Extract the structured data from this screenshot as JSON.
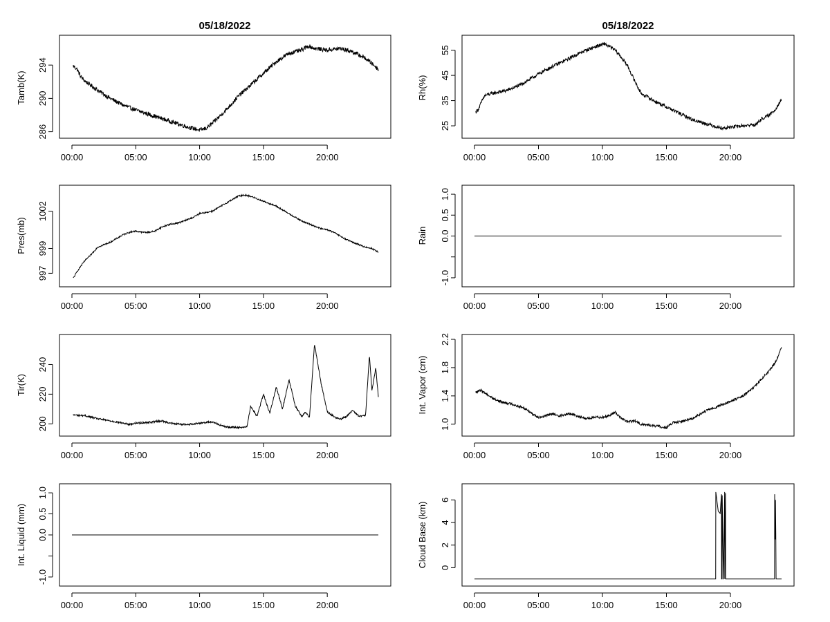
{
  "page_title": "05/18/2022",
  "chart_data": [
    {
      "id": "tamb",
      "type": "line",
      "title": "05/18/2022",
      "ylabel": "Tamb(K)",
      "xlim": [
        0,
        24
      ],
      "ylim": [
        285.8,
        297
      ],
      "x_ticks": [
        0,
        5,
        10,
        15,
        20
      ],
      "x_tick_labels": [
        "00:00",
        "05:00",
        "10:00",
        "15:00",
        "20:00"
      ],
      "y_ticks": [
        286,
        290,
        294
      ],
      "y_tick_labels": [
        "286",
        "290",
        "294"
      ],
      "noise": 0.25,
      "series": [
        {
          "x": [
            0.1,
            0.4,
            0.7,
            1,
            2,
            3,
            4,
            5,
            6,
            7,
            8,
            9,
            10,
            10.5,
            11,
            12,
            13,
            14,
            15,
            16,
            17,
            18,
            18.5,
            19,
            20,
            21,
            22,
            23,
            23.5,
            24
          ],
          "y": [
            293.9,
            293.5,
            292.6,
            292.1,
            291.0,
            290.0,
            289.2,
            288.6,
            288.1,
            287.6,
            287.1,
            286.6,
            286.2,
            286.4,
            287.0,
            288.5,
            290.2,
            291.6,
            293.0,
            294.4,
            295.4,
            295.8,
            296.3,
            296.0,
            295.8,
            296.0,
            295.6,
            294.8,
            294.2,
            293.5
          ]
        }
      ]
    },
    {
      "id": "rh",
      "type": "line",
      "title": "05/18/2022",
      "ylabel": "Rh(%)",
      "xlim": [
        0,
        24
      ],
      "ylim": [
        22,
        59
      ],
      "x_ticks": [
        0,
        5,
        10,
        15,
        20
      ],
      "x_tick_labels": [
        "00:00",
        "05:00",
        "10:00",
        "15:00",
        "20:00"
      ],
      "y_ticks": [
        25,
        35,
        45,
        55
      ],
      "y_tick_labels": [
        "25",
        "35",
        "45",
        "55"
      ],
      "noise": 0.7,
      "series": [
        {
          "x": [
            0.1,
            0.3,
            0.6,
            0.8,
            1.5,
            2.5,
            3.5,
            4.5,
            5.5,
            6.5,
            7.5,
            8.5,
            9.5,
            10.2,
            11,
            11.5,
            12,
            12.5,
            13,
            14,
            15,
            16,
            17,
            18,
            19,
            19.5,
            20,
            21,
            22,
            22.5,
            23,
            23.5,
            24
          ],
          "y": [
            30.5,
            31.5,
            35.0,
            37.0,
            38.0,
            39.0,
            41.0,
            44.0,
            47.0,
            49.5,
            52.0,
            54.5,
            56.5,
            57.5,
            55.0,
            52.0,
            48.5,
            43.0,
            38.0,
            35.0,
            32.5,
            30.0,
            27.5,
            26.0,
            24.5,
            24.0,
            24.5,
            25.0,
            25.5,
            28.0,
            29.0,
            31.5,
            35.5
          ]
        }
      ]
    },
    {
      "id": "pres",
      "type": "line",
      "title": "",
      "ylabel": "Pres(mb)",
      "xlim": [
        0,
        24
      ],
      "ylim": [
        996.3,
        1003.7
      ],
      "x_ticks": [
        0,
        5,
        10,
        15,
        20
      ],
      "x_tick_labels": [
        "00:00",
        "05:00",
        "10:00",
        "15:00",
        "20:00"
      ],
      "y_ticks": [
        997,
        999,
        1002
      ],
      "y_tick_labels": [
        "997",
        "999",
        "1002"
      ],
      "noise": 0.06,
      "series": [
        {
          "x": [
            0.1,
            0.5,
            1,
            1.5,
            2,
            2.5,
            3,
            3.5,
            4,
            4.5,
            5,
            5.5,
            6,
            6.5,
            7,
            7.5,
            8,
            8.5,
            9,
            9.5,
            10,
            10.5,
            11,
            11.5,
            12,
            12.5,
            13,
            13.5,
            14,
            14.5,
            15,
            15.5,
            16,
            16.5,
            17,
            17.5,
            18,
            18.5,
            19,
            19.5,
            20,
            20.5,
            21,
            21.5,
            22,
            22.5,
            23,
            23.5,
            24
          ],
          "y": [
            996.6,
            997.3,
            998.0,
            998.5,
            999.1,
            999.3,
            999.5,
            999.8,
            1000.1,
            1000.3,
            1000.4,
            1000.3,
            1000.3,
            1000.4,
            1000.7,
            1000.9,
            1001.0,
            1001.1,
            1001.3,
            1001.5,
            1001.8,
            1001.9,
            1002.0,
            1002.3,
            1002.6,
            1002.9,
            1003.2,
            1003.3,
            1003.2,
            1003.0,
            1002.8,
            1002.6,
            1002.4,
            1002.1,
            1001.8,
            1001.5,
            1001.2,
            1001.0,
            1000.8,
            1000.6,
            1000.5,
            1000.3,
            1000.0,
            999.7,
            999.5,
            999.3,
            999.1,
            999.0,
            998.7
          ]
        }
      ]
    },
    {
      "id": "rain",
      "type": "line",
      "title": "",
      "ylabel": "Rain",
      "xlim": [
        0,
        24
      ],
      "ylim": [
        -1.1,
        1.1
      ],
      "x_ticks": [
        0,
        5,
        10,
        15,
        20
      ],
      "x_tick_labels": [
        "00:00",
        "05:00",
        "10:00",
        "15:00",
        "20:00"
      ],
      "y_ticks": [
        -1.0,
        -0.5,
        0.0,
        0.5,
        1.0
      ],
      "y_tick_labels": [
        "-1.0",
        "",
        "0.0",
        "0.5",
        "1.0"
      ],
      "noise": 0,
      "series": [
        {
          "x": [
            0,
            24
          ],
          "y": [
            0,
            0
          ]
        }
      ]
    },
    {
      "id": "tir",
      "type": "line",
      "title": "",
      "ylabel": "Tir(K)",
      "xlim": [
        0,
        24
      ],
      "ylim": [
        195,
        257
      ],
      "x_ticks": [
        0,
        5,
        10,
        15,
        20
      ],
      "x_tick_labels": [
        "00:00",
        "05:00",
        "10:00",
        "15:00",
        "20:00"
      ],
      "y_ticks": [
        200,
        220,
        240
      ],
      "y_tick_labels": [
        "200",
        "220",
        "240"
      ],
      "noise": 0.6,
      "series": [
        {
          "x": [
            0.1,
            1,
            2,
            3,
            4,
            4.5,
            5,
            6,
            7,
            8,
            9,
            10,
            11,
            11.5,
            12,
            13,
            13.7,
            14,
            14.5,
            15,
            15.5,
            16,
            16.5,
            17,
            17.5,
            18,
            18.3,
            18.6,
            19,
            19.5,
            20,
            20.5,
            21,
            21.5,
            22,
            22.5,
            23,
            23.3,
            23.5,
            23.8,
            24
          ],
          "y": [
            206,
            205.5,
            203.5,
            202,
            200.5,
            199.5,
            200.5,
            201,
            202,
            200,
            199.5,
            200.5,
            201.5,
            199.5,
            198,
            197.5,
            198,
            212,
            205,
            220,
            207,
            225,
            210,
            230,
            212,
            205,
            208,
            204,
            254,
            228,
            208,
            205,
            203,
            205,
            209,
            205,
            206,
            246,
            222,
            238,
            218
          ]
        }
      ]
    },
    {
      "id": "vapor",
      "type": "line",
      "title": "",
      "ylabel": "Int. Vapor (cm)",
      "xlim": [
        0,
        24
      ],
      "ylim": [
        0.9,
        2.2
      ],
      "x_ticks": [
        0,
        5,
        10,
        15,
        20
      ],
      "x_tick_labels": [
        "00:00",
        "05:00",
        "10:00",
        "15:00",
        "20:00"
      ],
      "y_ticks": [
        1.0,
        1.4,
        1.8,
        2.2
      ],
      "y_tick_labels": [
        "1.0",
        "1.4",
        "1.8",
        "2.2"
      ],
      "noise": 0.018,
      "series": [
        {
          "x": [
            0.1,
            0.5,
            1,
            1.5,
            2,
            3,
            4,
            4.5,
            5,
            5.5,
            6,
            6.5,
            7,
            7.5,
            8,
            8.5,
            9,
            9.5,
            10,
            10.5,
            11,
            11.5,
            12,
            12.5,
            13,
            14,
            15,
            15.5,
            16,
            17,
            18,
            19,
            20,
            21,
            22,
            22.5,
            23,
            23.5,
            24
          ],
          "y": [
            1.45,
            1.48,
            1.42,
            1.36,
            1.32,
            1.28,
            1.22,
            1.15,
            1.1,
            1.11,
            1.15,
            1.12,
            1.13,
            1.15,
            1.12,
            1.09,
            1.08,
            1.1,
            1.1,
            1.12,
            1.17,
            1.08,
            1.03,
            1.05,
            1.0,
            0.98,
            0.95,
            1.02,
            1.03,
            1.08,
            1.18,
            1.25,
            1.32,
            1.4,
            1.55,
            1.65,
            1.75,
            1.87,
            2.08
          ]
        }
      ]
    },
    {
      "id": "liquid",
      "type": "line",
      "title": "",
      "ylabel": "Int. Liquid (mm)",
      "xlim": [
        0,
        24
      ],
      "ylim": [
        -1.1,
        1.1
      ],
      "x_ticks": [
        0,
        5,
        10,
        15,
        20
      ],
      "x_tick_labels": [
        "00:00",
        "05:00",
        "10:00",
        "15:00",
        "20:00"
      ],
      "y_ticks": [
        -1.0,
        -0.5,
        0.0,
        0.5,
        1.0
      ],
      "y_tick_labels": [
        "-1.0",
        "",
        "0.0",
        "0.5",
        "1.0"
      ],
      "noise": 0,
      "series": [
        {
          "x": [
            0,
            24
          ],
          "y": [
            0,
            0
          ]
        }
      ]
    },
    {
      "id": "cloudbase",
      "type": "line",
      "title": "",
      "ylabel": "Cloud Base (km)",
      "xlim": [
        0,
        24
      ],
      "ylim": [
        -1.2,
        7.0
      ],
      "x_ticks": [
        0,
        5,
        10,
        15,
        20
      ],
      "x_tick_labels": [
        "00:00",
        "05:00",
        "10:00",
        "15:00",
        "20:00"
      ],
      "y_ticks": [
        0,
        2,
        4,
        6
      ],
      "y_tick_labels": [
        "0",
        "2",
        "4",
        "6"
      ],
      "noise": 0,
      "series": [
        {
          "x": [
            0,
            18.85,
            18.86,
            19.05,
            19.2,
            19.3,
            19.31,
            19.35,
            19.36,
            19.45,
            19.46,
            19.55,
            19.56,
            19.62,
            19.63,
            23.45,
            23.46,
            23.5,
            23.52,
            23.55,
            23.57,
            24
          ],
          "y": [
            -1,
            -1,
            6.7,
            5.0,
            4.8,
            6.5,
            -1,
            -1,
            6.4,
            -1,
            -1,
            6.7,
            -1,
            6.6,
            -1,
            -1,
            6.5,
            2.5,
            6.0,
            3.0,
            -1,
            -1
          ]
        }
      ]
    }
  ]
}
